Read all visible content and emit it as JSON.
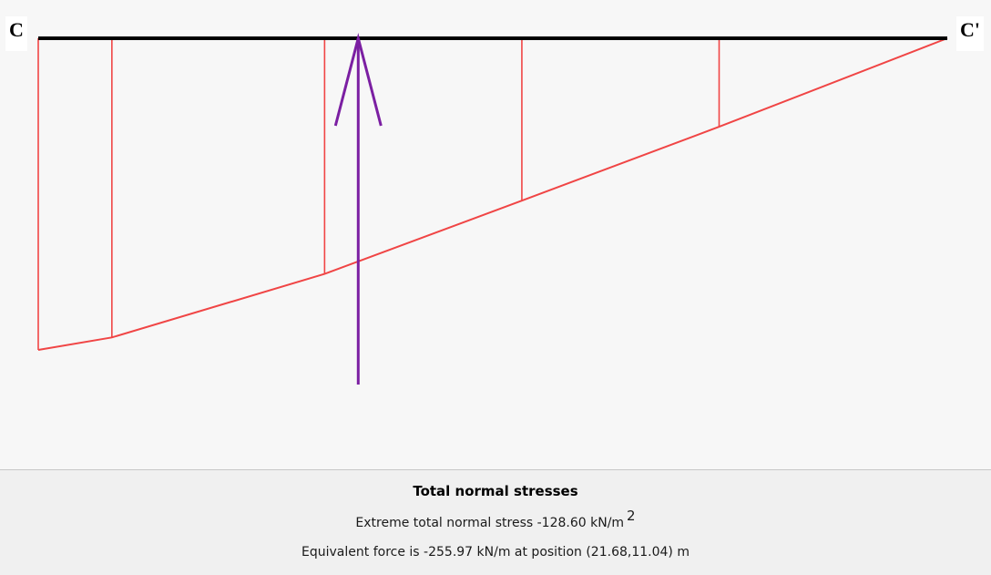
{
  "labels": {
    "start": "C",
    "end": "C'"
  },
  "colors": {
    "beam": "#000000",
    "stress": "#f04545",
    "force": "#7b1fa2",
    "panel": "#f7f7f7"
  },
  "stress_diagram": {
    "type": "line",
    "description_of_units": "distance along C–C' (0 = C, 1 = C') vs stress magnitude (fraction of extreme)",
    "profile": [
      {
        "pos": 0.0,
        "value": 1.0
      },
      {
        "pos": 0.081,
        "value": 0.96
      },
      {
        "pos": 0.315,
        "value": 0.756
      },
      {
        "pos": 0.532,
        "value": 0.521
      },
      {
        "pos": 0.749,
        "value": 0.284
      },
      {
        "pos": 1.0,
        "value": 0.0
      }
    ],
    "ordinates_at": [
      0.0,
      0.081,
      0.315,
      0.532,
      0.749
    ],
    "resultant_at": 0.352
  },
  "caption": {
    "title": "Total normal stresses",
    "stress_text": "Extreme total normal stress -128.60  kN/m",
    "stress_exponent": "2",
    "force_text": "Equivalent force is -255.97 kN/m at position (21.68,11.04) m"
  }
}
